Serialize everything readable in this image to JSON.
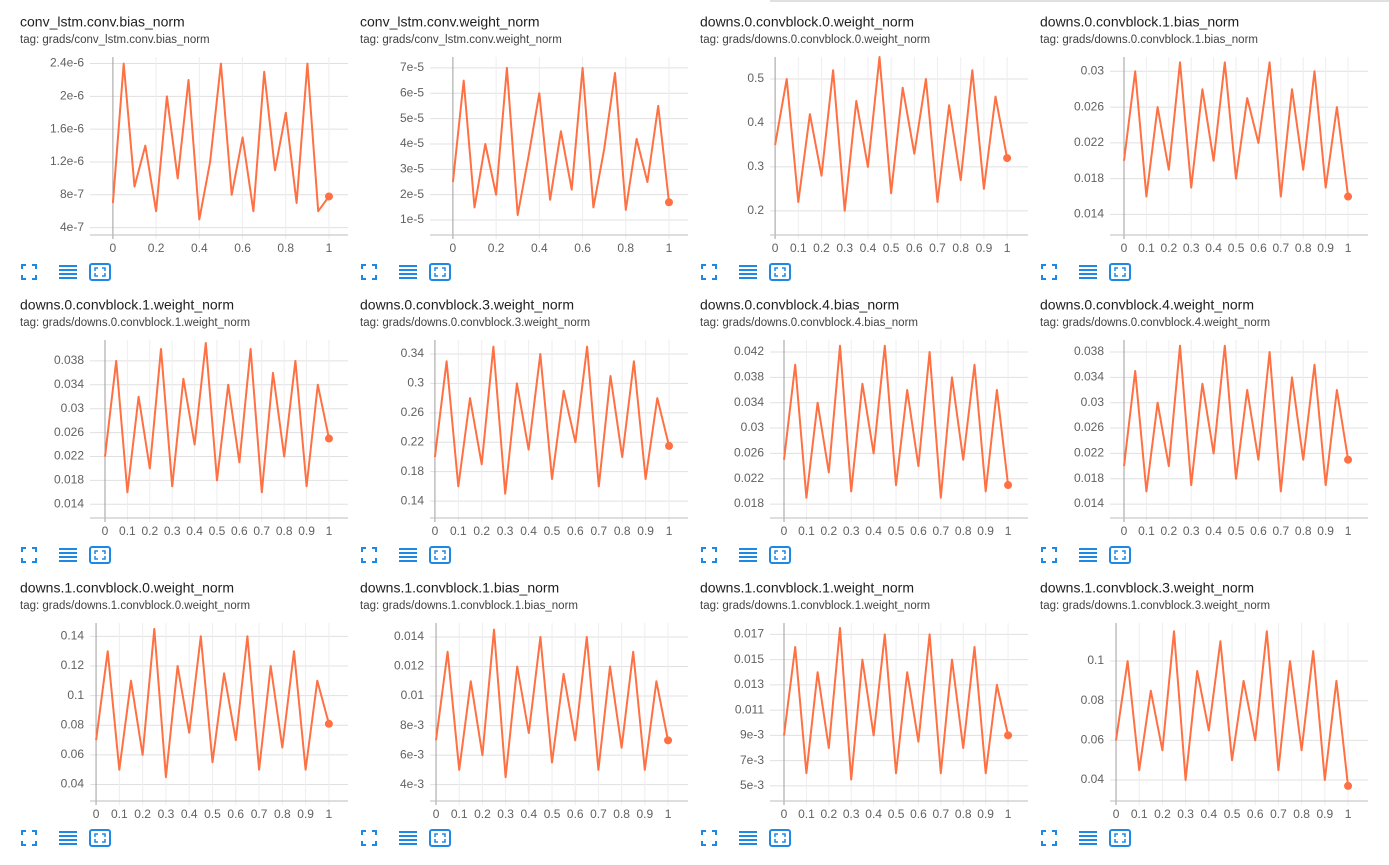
{
  "chart_data": [
    {
      "type": "line",
      "title": "conv_lstm.conv.bias_norm",
      "tag": "tag: grads/conv_lstm.conv.bias_norm",
      "color": "#ff7043",
      "x": [
        0,
        0.05,
        0.1,
        0.15,
        0.2,
        0.25,
        0.3,
        0.35,
        0.4,
        0.45,
        0.5,
        0.55,
        0.6,
        0.65,
        0.7,
        0.75,
        0.8,
        0.85,
        0.9,
        0.95,
        1
      ],
      "values": [
        7e-07,
        2.4e-06,
        9e-07,
        1.4e-06,
        6e-07,
        2e-06,
        1e-06,
        2.2e-06,
        5e-07,
        1.2e-06,
        2.4e-06,
        8e-07,
        1.5e-06,
        6e-07,
        2.3e-06,
        1.1e-06,
        1.8e-06,
        7e-07,
        2.4e-06,
        6e-07,
        7.8e-07
      ],
      "xlim": [
        -0.106,
        1.088
      ],
      "xticks": [
        0,
        0.2,
        0.4,
        0.6,
        0.8,
        1
      ],
      "ylim": [
        3.1e-07,
        2.48e-06
      ],
      "yticks": [
        {
          "value": 4e-07,
          "label": "4e-7"
        },
        {
          "value": 8e-07,
          "label": "8e-7"
        },
        {
          "value": 1.2e-06,
          "label": "1.2e-6"
        },
        {
          "value": 1.6e-06,
          "label": "1.6e-6"
        },
        {
          "value": 2e-06,
          "label": "2e-6"
        },
        {
          "value": 2.4e-06,
          "label": "2.4e-6"
        }
      ],
      "grid": true
    },
    {
      "type": "line",
      "title": "conv_lstm.conv.weight_norm",
      "tag": "tag: grads/conv_lstm.conv.weight_norm",
      "color": "#ff7043",
      "x": [
        0,
        0.05,
        0.1,
        0.15,
        0.2,
        0.25,
        0.3,
        0.35,
        0.4,
        0.45,
        0.5,
        0.55,
        0.6,
        0.65,
        0.7,
        0.75,
        0.8,
        0.85,
        0.9,
        0.95,
        1
      ],
      "values": [
        2.5e-05,
        6.5e-05,
        1.5e-05,
        4e-05,
        2e-05,
        7e-05,
        1.2e-05,
        3.5e-05,
        6e-05,
        1.8e-05,
        4.5e-05,
        2.2e-05,
        7e-05,
        1.5e-05,
        3.8e-05,
        6.8e-05,
        1.4e-05,
        4.2e-05,
        2.5e-05,
        5.5e-05,
        1.7e-05
      ],
      "xlim": [
        -0.106,
        1.088
      ],
      "xticks": [
        0,
        0.2,
        0.4,
        0.6,
        0.8,
        1
      ],
      "ylim": [
        4.1e-06,
        7.43e-05
      ],
      "yticks": [
        {
          "value": 1e-05,
          "label": "1e-5"
        },
        {
          "value": 2e-05,
          "label": "2e-5"
        },
        {
          "value": 3e-05,
          "label": "3e-5"
        },
        {
          "value": 4e-05,
          "label": "4e-5"
        },
        {
          "value": 5e-05,
          "label": "5e-5"
        },
        {
          "value": 6e-05,
          "label": "6e-5"
        },
        {
          "value": 7e-05,
          "label": "7e-5"
        }
      ],
      "grid": true
    },
    {
      "type": "line",
      "title": "downs.0.convblock.0.weight_norm",
      "tag": "tag: grads/downs.0.convblock.0.weight_norm",
      "color": "#ff7043",
      "x": [
        0,
        0.05,
        0.1,
        0.15,
        0.2,
        0.25,
        0.3,
        0.35,
        0.4,
        0.45,
        0.5,
        0.55,
        0.6,
        0.65,
        0.7,
        0.75,
        0.8,
        0.85,
        0.9,
        0.95,
        1
      ],
      "values": [
        0.35,
        0.5,
        0.22,
        0.42,
        0.28,
        0.52,
        0.2,
        0.45,
        0.3,
        0.55,
        0.24,
        0.48,
        0.33,
        0.5,
        0.22,
        0.44,
        0.27,
        0.52,
        0.25,
        0.46,
        0.32
      ],
      "xlim": [
        -0.022,
        1.09
      ],
      "xticks": [
        0,
        0.1,
        0.2,
        0.3,
        0.4,
        0.5,
        0.6,
        0.7,
        0.8,
        0.9,
        1
      ],
      "ylim": [
        0.145,
        0.55
      ],
      "yticks": [
        0.2,
        0.3,
        0.4,
        0.5
      ],
      "grid": true
    },
    {
      "type": "line",
      "title": "downs.0.convblock.1.bias_norm",
      "tag": "tag: grads/downs.0.convblock.1.bias_norm",
      "color": "#ff7043",
      "x": [
        0,
        0.05,
        0.1,
        0.15,
        0.2,
        0.25,
        0.3,
        0.35,
        0.4,
        0.45,
        0.5,
        0.55,
        0.6,
        0.65,
        0.7,
        0.75,
        0.8,
        0.85,
        0.9,
        0.95,
        1
      ],
      "values": [
        0.02,
        0.03,
        0.016,
        0.026,
        0.019,
        0.031,
        0.017,
        0.028,
        0.02,
        0.031,
        0.018,
        0.027,
        0.022,
        0.031,
        0.016,
        0.028,
        0.019,
        0.03,
        0.017,
        0.026,
        0.016
      ],
      "xlim": [
        -0.0625,
        1.089
      ],
      "xticks": [
        0,
        0.1,
        0.2,
        0.3,
        0.4,
        0.5,
        0.6,
        0.7,
        0.8,
        0.9,
        1
      ],
      "ylim": [
        0.0117,
        0.0316
      ],
      "yticks": [
        0.014,
        0.018,
        0.022,
        0.026,
        0.03
      ],
      "grid": true
    },
    {
      "type": "line",
      "title": "downs.0.convblock.1.weight_norm",
      "tag": "tag: grads/downs.0.convblock.1.weight_norm",
      "color": "#ff7043",
      "x": [
        0,
        0.05,
        0.1,
        0.15,
        0.2,
        0.25,
        0.3,
        0.35,
        0.4,
        0.45,
        0.5,
        0.55,
        0.6,
        0.65,
        0.7,
        0.75,
        0.8,
        0.85,
        0.9,
        0.95,
        1
      ],
      "values": [
        0.022,
        0.038,
        0.016,
        0.032,
        0.02,
        0.04,
        0.017,
        0.035,
        0.024,
        0.041,
        0.018,
        0.034,
        0.021,
        0.04,
        0.016,
        0.036,
        0.022,
        0.038,
        0.017,
        0.034,
        0.025
      ],
      "xlim": [
        -0.067,
        1.085
      ],
      "xticks": [
        0,
        0.1,
        0.2,
        0.3,
        0.4,
        0.5,
        0.6,
        0.7,
        0.8,
        0.9,
        1
      ],
      "ylim": [
        0.0117,
        0.0415
      ],
      "yticks": [
        0.014,
        0.018,
        0.022,
        0.026,
        0.03,
        0.034,
        0.038
      ],
      "grid": true
    },
    {
      "type": "line",
      "title": "downs.0.convblock.3.weight_norm",
      "tag": "tag: grads/downs.0.convblock.3.weight_norm",
      "color": "#ff7043",
      "x": [
        0,
        0.05,
        0.1,
        0.15,
        0.2,
        0.25,
        0.3,
        0.35,
        0.4,
        0.45,
        0.5,
        0.55,
        0.6,
        0.65,
        0.7,
        0.75,
        0.8,
        0.85,
        0.9,
        0.95,
        1
      ],
      "values": [
        0.2,
        0.33,
        0.16,
        0.28,
        0.19,
        0.35,
        0.15,
        0.3,
        0.21,
        0.34,
        0.17,
        0.29,
        0.22,
        0.35,
        0.16,
        0.31,
        0.2,
        0.33,
        0.17,
        0.28,
        0.215
      ],
      "xlim": [
        -0.021,
        1.081
      ],
      "xticks": [
        0,
        0.1,
        0.2,
        0.3,
        0.4,
        0.5,
        0.6,
        0.7,
        0.8,
        0.9,
        1
      ],
      "ylim": [
        0.117,
        0.359
      ],
      "yticks": [
        0.14,
        0.18,
        0.22,
        0.26,
        0.3,
        0.34
      ],
      "grid": true
    },
    {
      "type": "line",
      "title": "downs.0.convblock.4.bias_norm",
      "tag": "tag: grads/downs.0.convblock.4.bias_norm",
      "color": "#ff7043",
      "x": [
        0,
        0.05,
        0.1,
        0.15,
        0.2,
        0.25,
        0.3,
        0.35,
        0.4,
        0.45,
        0.5,
        0.55,
        0.6,
        0.65,
        0.7,
        0.75,
        0.8,
        0.85,
        0.9,
        0.95,
        1
      ],
      "values": [
        0.025,
        0.04,
        0.019,
        0.034,
        0.023,
        0.043,
        0.02,
        0.037,
        0.026,
        0.043,
        0.021,
        0.036,
        0.024,
        0.042,
        0.019,
        0.038,
        0.025,
        0.04,
        0.02,
        0.036,
        0.021
      ],
      "xlim": [
        -0.0625,
        1.089
      ],
      "xticks": [
        0,
        0.1,
        0.2,
        0.3,
        0.4,
        0.5,
        0.6,
        0.7,
        0.8,
        0.9,
        1
      ],
      "ylim": [
        0.0158,
        0.0439
      ],
      "yticks": [
        0.018,
        0.022,
        0.026,
        0.03,
        0.034,
        0.038,
        0.042
      ],
      "grid": true
    },
    {
      "type": "line",
      "title": "downs.0.convblock.4.weight_norm",
      "tag": "tag: grads/downs.0.convblock.4.weight_norm",
      "color": "#ff7043",
      "x": [
        0,
        0.05,
        0.1,
        0.15,
        0.2,
        0.25,
        0.3,
        0.35,
        0.4,
        0.45,
        0.5,
        0.55,
        0.6,
        0.65,
        0.7,
        0.75,
        0.8,
        0.85,
        0.9,
        0.95,
        1
      ],
      "values": [
        0.02,
        0.035,
        0.016,
        0.03,
        0.02,
        0.039,
        0.017,
        0.033,
        0.022,
        0.039,
        0.018,
        0.032,
        0.021,
        0.038,
        0.016,
        0.034,
        0.021,
        0.036,
        0.017,
        0.032,
        0.021
      ],
      "xlim": [
        -0.0625,
        1.089
      ],
      "xticks": [
        0,
        0.1,
        0.2,
        0.3,
        0.4,
        0.5,
        0.6,
        0.7,
        0.8,
        0.9,
        1
      ],
      "ylim": [
        0.0118,
        0.0399
      ],
      "yticks": [
        0.014,
        0.018,
        0.022,
        0.026,
        0.03,
        0.034,
        0.038
      ],
      "grid": true
    },
    {
      "type": "line",
      "title": "downs.1.convblock.0.weight_norm",
      "tag": "tag: grads/downs.1.convblock.0.weight_norm",
      "color": "#ff7043",
      "x": [
        0,
        0.05,
        0.1,
        0.15,
        0.2,
        0.25,
        0.3,
        0.35,
        0.4,
        0.45,
        0.5,
        0.55,
        0.6,
        0.65,
        0.7,
        0.75,
        0.8,
        0.85,
        0.9,
        0.95,
        1
      ],
      "values": [
        0.07,
        0.13,
        0.05,
        0.11,
        0.06,
        0.145,
        0.045,
        0.12,
        0.075,
        0.14,
        0.055,
        0.115,
        0.07,
        0.14,
        0.05,
        0.12,
        0.065,
        0.13,
        0.05,
        0.11,
        0.081
      ],
      "xlim": [
        -0.026,
        1.082
      ],
      "xticks": [
        0,
        0.1,
        0.2,
        0.3,
        0.4,
        0.5,
        0.6,
        0.7,
        0.8,
        0.9,
        1
      ],
      "ylim": [
        0.0289,
        0.149
      ],
      "yticks": [
        0.04,
        0.06,
        0.08,
        0.1,
        0.12,
        0.14
      ],
      "grid": true
    },
    {
      "type": "line",
      "title": "downs.1.convblock.1.bias_norm",
      "tag": "tag: grads/downs.1.convblock.1.bias_norm",
      "color": "#ff7043",
      "x": [
        0,
        0.05,
        0.1,
        0.15,
        0.2,
        0.25,
        0.3,
        0.35,
        0.4,
        0.45,
        0.5,
        0.55,
        0.6,
        0.65,
        0.7,
        0.75,
        0.8,
        0.85,
        0.9,
        0.95,
        1
      ],
      "values": [
        0.007,
        0.013,
        0.005,
        0.011,
        0.006,
        0.0145,
        0.0045,
        0.012,
        0.0075,
        0.014,
        0.0055,
        0.0115,
        0.007,
        0.014,
        0.005,
        0.012,
        0.0065,
        0.013,
        0.005,
        0.011,
        0.007
      ],
      "xlim": [
        -0.026,
        1.086
      ],
      "xticks": [
        0,
        0.1,
        0.2,
        0.3,
        0.4,
        0.5,
        0.6,
        0.7,
        0.8,
        0.9,
        1
      ],
      "ylim": [
        0.00289,
        0.01495
      ],
      "yticks": [
        {
          "value": 0.004,
          "label": "4e-3"
        },
        {
          "value": 0.006,
          "label": "6e-3"
        },
        {
          "value": 0.008,
          "label": "8e-3"
        },
        0.01,
        0.012,
        0.014
      ],
      "grid": true
    },
    {
      "type": "line",
      "title": "downs.1.convblock.1.weight_norm",
      "tag": "tag: grads/downs.1.convblock.1.weight_norm",
      "color": "#ff7043",
      "x": [
        0,
        0.05,
        0.1,
        0.15,
        0.2,
        0.25,
        0.3,
        0.35,
        0.4,
        0.45,
        0.5,
        0.55,
        0.6,
        0.65,
        0.7,
        0.75,
        0.8,
        0.85,
        0.9,
        0.95,
        1
      ],
      "values": [
        0.009,
        0.016,
        0.006,
        0.014,
        0.008,
        0.0175,
        0.0055,
        0.015,
        0.009,
        0.017,
        0.006,
        0.014,
        0.0085,
        0.017,
        0.006,
        0.015,
        0.008,
        0.016,
        0.006,
        0.013,
        0.009
      ],
      "xlim": [
        -0.0625,
        1.089
      ],
      "xticks": [
        0,
        0.1,
        0.2,
        0.3,
        0.4,
        0.5,
        0.6,
        0.7,
        0.8,
        0.9,
        1
      ],
      "ylim": [
        0.0038,
        0.0179
      ],
      "yticks": [
        {
          "value": 0.005,
          "label": "5e-3"
        },
        {
          "value": 0.007,
          "label": "7e-3"
        },
        {
          "value": 0.009,
          "label": "9e-3"
        },
        0.011,
        0.013,
        0.015,
        0.017
      ],
      "grid": true
    },
    {
      "type": "line",
      "title": "downs.1.convblock.3.weight_norm",
      "tag": "tag: grads/downs.1.convblock.3.weight_norm",
      "color": "#ff7043",
      "x": [
        0,
        0.05,
        0.1,
        0.15,
        0.2,
        0.25,
        0.3,
        0.35,
        0.4,
        0.45,
        0.5,
        0.55,
        0.6,
        0.65,
        0.7,
        0.75,
        0.8,
        0.85,
        0.9,
        0.95,
        1
      ],
      "values": [
        0.06,
        0.1,
        0.045,
        0.085,
        0.055,
        0.115,
        0.04,
        0.095,
        0.065,
        0.11,
        0.05,
        0.09,
        0.06,
        0.115,
        0.045,
        0.1,
        0.055,
        0.105,
        0.04,
        0.09,
        0.037
      ],
      "xlim": [
        -0.026,
        1.086
      ],
      "xticks": [
        0,
        0.1,
        0.2,
        0.3,
        0.4,
        0.5,
        0.6,
        0.7,
        0.8,
        0.9,
        1
      ],
      "ylim": [
        0.0294,
        0.1192
      ],
      "yticks": [
        0.04,
        0.06,
        0.08,
        0.1
      ],
      "grid": true
    }
  ]
}
